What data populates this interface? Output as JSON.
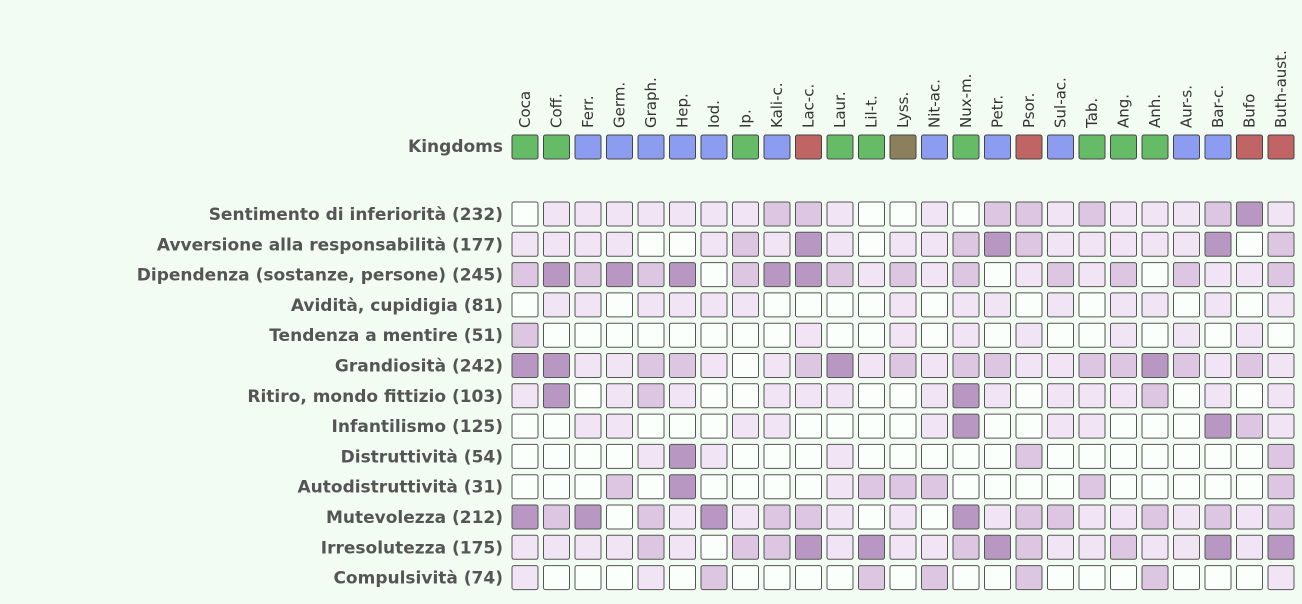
{
  "kingdoms_label": "Kingdoms",
  "level_colors": [
    "#fbfffb",
    "#f1e4f5",
    "#dcc6e2",
    "#b898c2"
  ],
  "columns": [
    {
      "name": "Coca",
      "kingdom_color": "#66bb66"
    },
    {
      "name": "Coff.",
      "kingdom_color": "#66bb66"
    },
    {
      "name": "Ferr.",
      "kingdom_color": "#8c9cf0"
    },
    {
      "name": "Germ.",
      "kingdom_color": "#8c9cf0"
    },
    {
      "name": "Graph.",
      "kingdom_color": "#8c9cf0"
    },
    {
      "name": "Hep.",
      "kingdom_color": "#8c9cf0"
    },
    {
      "name": "Iod.",
      "kingdom_color": "#8c9cf0"
    },
    {
      "name": "Ip.",
      "kingdom_color": "#66bb66"
    },
    {
      "name": "Kali-c.",
      "kingdom_color": "#8c9cf0"
    },
    {
      "name": "Lac-c.",
      "kingdom_color": "#c06464"
    },
    {
      "name": "Laur.",
      "kingdom_color": "#66bb66"
    },
    {
      "name": "Lil-t.",
      "kingdom_color": "#66bb66"
    },
    {
      "name": "Lyss.",
      "kingdom_color": "#8c7f5c"
    },
    {
      "name": "Nit-ac.",
      "kingdom_color": "#8c9cf0"
    },
    {
      "name": "Nux-m.",
      "kingdom_color": "#66bb66"
    },
    {
      "name": "Petr.",
      "kingdom_color": "#8c9cf0"
    },
    {
      "name": "Psor.",
      "kingdom_color": "#c06464"
    },
    {
      "name": "Sul-ac.",
      "kingdom_color": "#8c9cf0"
    },
    {
      "name": "Tab.",
      "kingdom_color": "#66bb66"
    },
    {
      "name": "Ang.",
      "kingdom_color": "#66bb66"
    },
    {
      "name": "Anh.",
      "kingdom_color": "#66bb66"
    },
    {
      "name": "Aur-s.",
      "kingdom_color": "#8c9cf0"
    },
    {
      "name": "Bar-c.",
      "kingdom_color": "#8c9cf0"
    },
    {
      "name": "Bufo",
      "kingdom_color": "#c06464"
    },
    {
      "name": "Buth-aust.",
      "kingdom_color": "#c06464"
    }
  ],
  "rows": [
    {
      "label": "Sentimento di inferiorità (232)",
      "cells": [
        0,
        1,
        1,
        1,
        1,
        1,
        1,
        1,
        2,
        2,
        1,
        0,
        0,
        1,
        0,
        2,
        2,
        1,
        2,
        1,
        1,
        1,
        2,
        3,
        1
      ]
    },
    {
      "label": "Avversione alla responsabilità (177)",
      "cells": [
        1,
        1,
        1,
        1,
        0,
        0,
        1,
        2,
        1,
        3,
        1,
        0,
        1,
        1,
        2,
        3,
        2,
        1,
        1,
        1,
        1,
        1,
        3,
        0,
        2
      ]
    },
    {
      "label": "Dipendenza (sostanze, persone) (245)",
      "cells": [
        2,
        3,
        2,
        3,
        2,
        3,
        0,
        2,
        3,
        3,
        2,
        1,
        2,
        1,
        2,
        0,
        1,
        2,
        1,
        2,
        0,
        2,
        1,
        1,
        2
      ]
    },
    {
      "label": "Avidità, cupidigia (81)",
      "cells": [
        0,
        1,
        1,
        0,
        1,
        1,
        1,
        1,
        0,
        0,
        0,
        0,
        1,
        0,
        1,
        1,
        0,
        1,
        0,
        1,
        1,
        0,
        1,
        0,
        1
      ]
    },
    {
      "label": "Tendenza a mentire (51)",
      "cells": [
        2,
        0,
        0,
        0,
        0,
        0,
        0,
        0,
        0,
        1,
        0,
        0,
        1,
        0,
        1,
        0,
        1,
        0,
        0,
        1,
        0,
        1,
        0,
        1,
        0
      ]
    },
    {
      "label": "Grandiosità (242)",
      "cells": [
        3,
        3,
        1,
        1,
        2,
        2,
        1,
        0,
        1,
        2,
        3,
        1,
        2,
        1,
        2,
        2,
        1,
        1,
        2,
        2,
        3,
        2,
        1,
        2,
        1
      ]
    },
    {
      "label": "Ritiro, mondo fittizio (103)",
      "cells": [
        1,
        3,
        0,
        1,
        2,
        1,
        0,
        0,
        1,
        1,
        1,
        0,
        0,
        1,
        3,
        1,
        0,
        1,
        1,
        1,
        2,
        0,
        1,
        0,
        1
      ]
    },
    {
      "label": "Infantilismo (125)",
      "cells": [
        0,
        0,
        1,
        1,
        0,
        0,
        0,
        1,
        1,
        0,
        0,
        0,
        0,
        1,
        3,
        0,
        0,
        1,
        1,
        0,
        0,
        0,
        3,
        2,
        1
      ]
    },
    {
      "label": "Distruttività (54)",
      "cells": [
        0,
        0,
        0,
        0,
        1,
        3,
        1,
        0,
        0,
        0,
        1,
        0,
        0,
        0,
        0,
        0,
        2,
        0,
        0,
        0,
        0,
        0,
        0,
        0,
        2
      ]
    },
    {
      "label": "Autodistruttività (31)",
      "cells": [
        0,
        0,
        0,
        2,
        0,
        3,
        0,
        0,
        0,
        0,
        1,
        2,
        2,
        2,
        0,
        0,
        0,
        0,
        2,
        0,
        0,
        0,
        0,
        0,
        2
      ]
    },
    {
      "label": "Mutevolezza (212)",
      "cells": [
        3,
        2,
        3,
        0,
        2,
        1,
        3,
        1,
        2,
        2,
        1,
        0,
        1,
        0,
        3,
        1,
        2,
        2,
        1,
        1,
        2,
        1,
        2,
        1,
        2
      ]
    },
    {
      "label": "Irresolutezza (175)",
      "cells": [
        1,
        1,
        1,
        1,
        2,
        1,
        0,
        2,
        2,
        3,
        1,
        3,
        1,
        1,
        2,
        3,
        2,
        1,
        1,
        2,
        1,
        1,
        3,
        1,
        3
      ]
    },
    {
      "label": "Compulsività (74)",
      "cells": [
        1,
        0,
        0,
        0,
        1,
        0,
        2,
        0,
        0,
        0,
        0,
        2,
        0,
        2,
        0,
        0,
        2,
        0,
        0,
        0,
        2,
        0,
        0,
        0,
        1
      ]
    }
  ]
}
